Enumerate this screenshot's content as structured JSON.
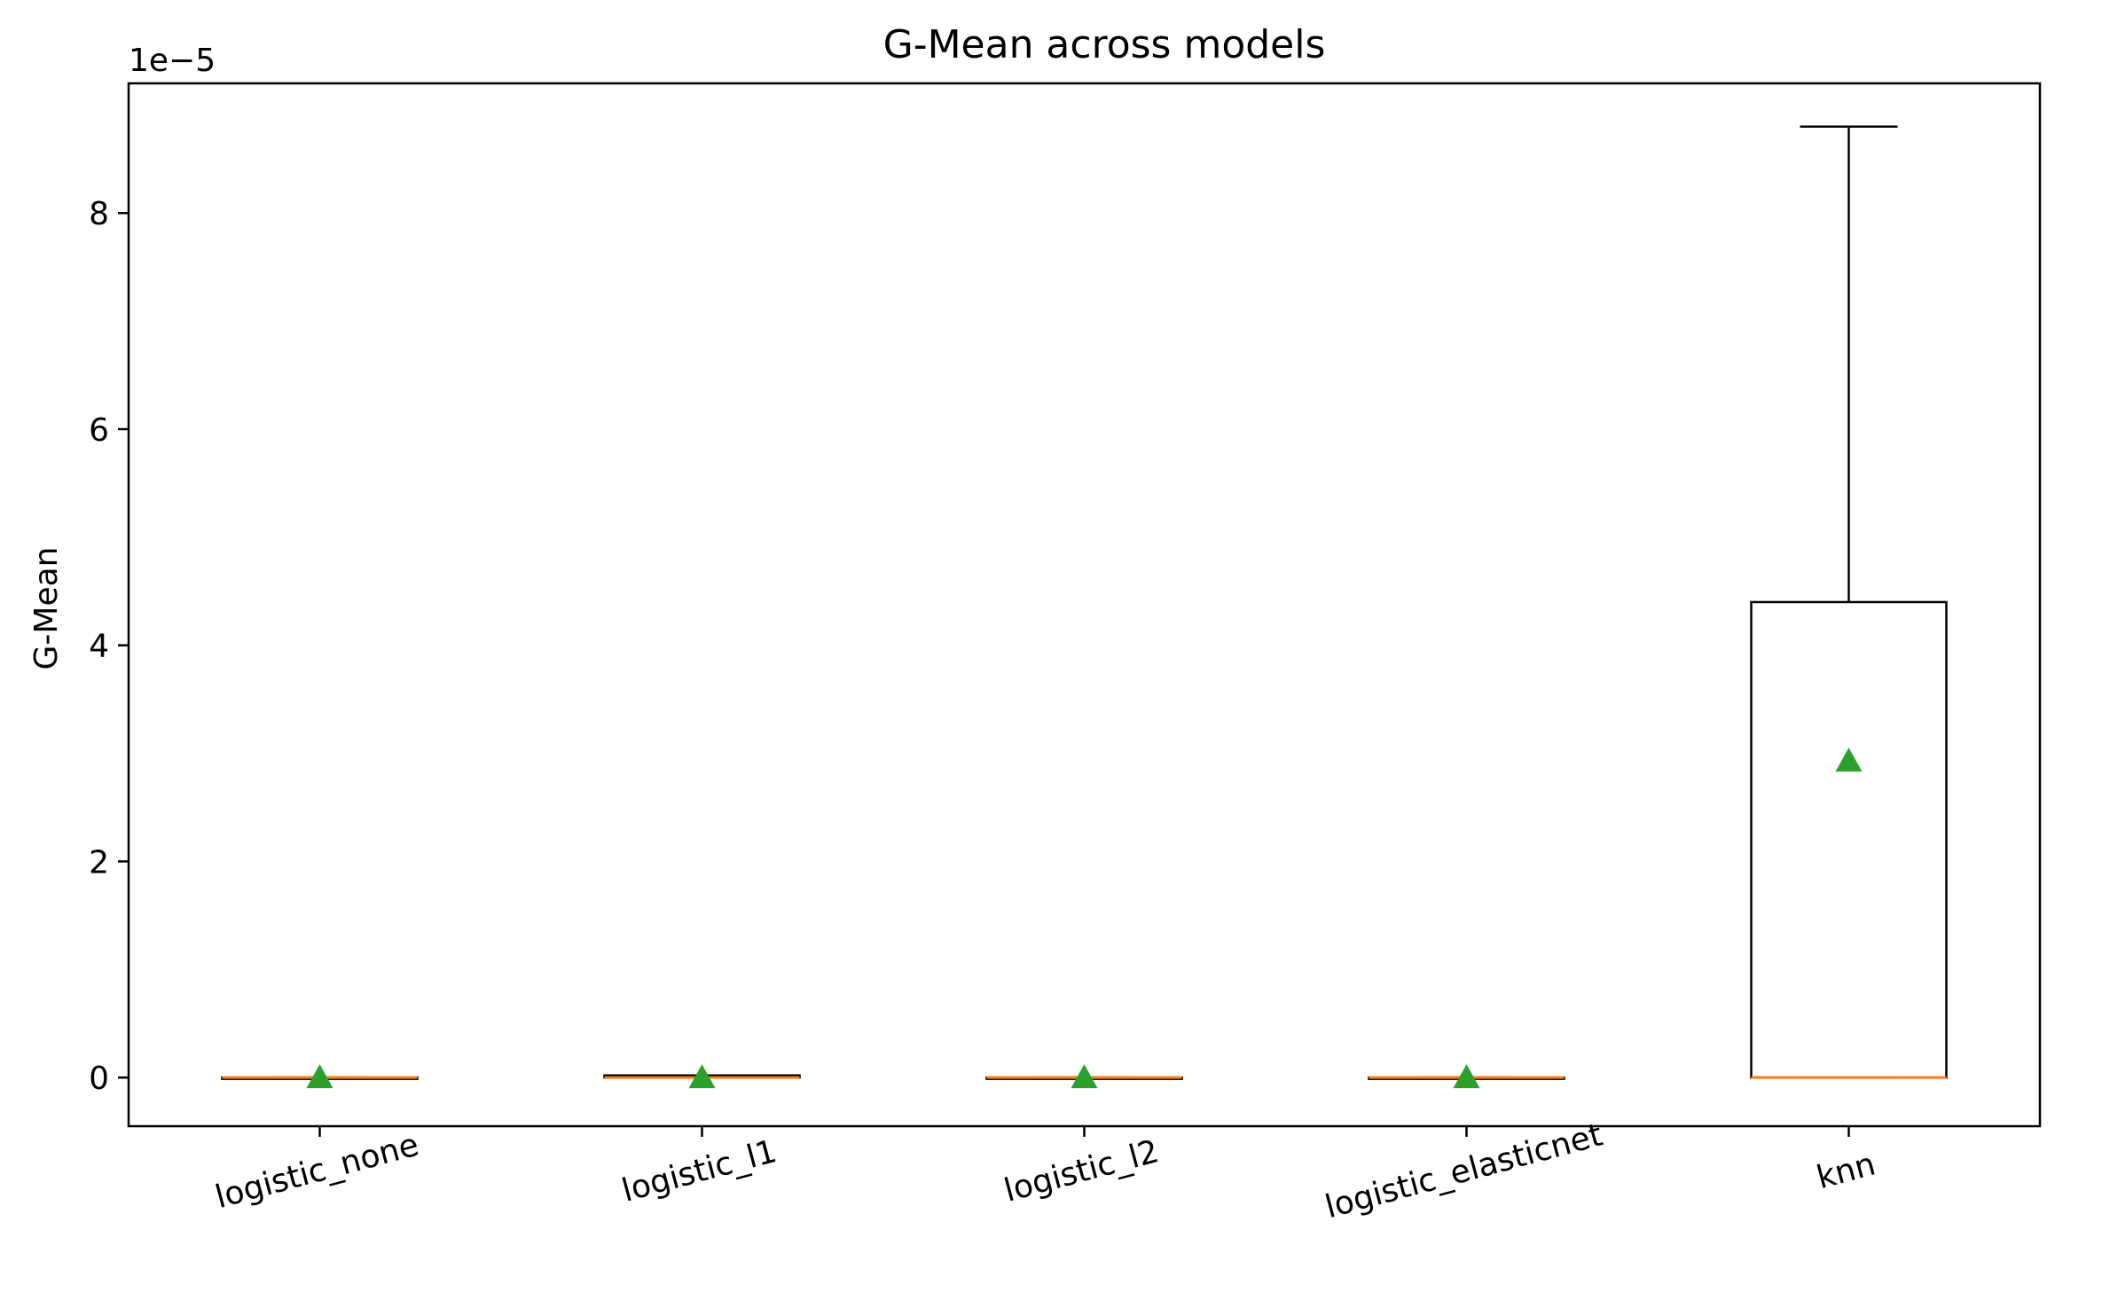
{
  "chart_data": {
    "type": "box",
    "title": "G-Mean across models",
    "xlabel": "",
    "ylabel": "G-Mean",
    "y_offset_label": "1e−5",
    "y_scale_exponent": -5,
    "ylim": [
      -0.45,
      9.2
    ],
    "yticks": [
      0,
      2,
      4,
      6,
      8
    ],
    "ytick_labels": [
      "0",
      "2",
      "4",
      "6",
      "8"
    ],
    "grid": false,
    "xtick_rotation_deg": 15,
    "categories": [
      "logistic_none",
      "logistic_l1",
      "logistic_l2",
      "logistic_elasticnet",
      "knn"
    ],
    "boxes": [
      {
        "name": "logistic_none",
        "whisker_low": 0,
        "q1": 0,
        "median": 0,
        "q3": 0,
        "whisker_high": 0,
        "mean": 0
      },
      {
        "name": "logistic_l1",
        "whisker_low": 0,
        "q1": 0,
        "median": 0,
        "q3": 0.02,
        "whisker_high": 0.02,
        "mean": 0
      },
      {
        "name": "logistic_l2",
        "whisker_low": 0,
        "q1": 0,
        "median": 0,
        "q3": 0,
        "whisker_high": 0,
        "mean": 0
      },
      {
        "name": "logistic_elasticnet",
        "whisker_low": 0,
        "q1": 0,
        "median": 0,
        "q3": 0,
        "whisker_high": 0,
        "mean": 0
      },
      {
        "name": "knn",
        "whisker_low": 0,
        "q1": 0,
        "median": 0,
        "q3": 4.4,
        "whisker_high": 8.8,
        "mean": 2.93
      }
    ],
    "colors": {
      "box": "#000000",
      "median": "#ff7f0e",
      "mean_marker": "#2ca02c"
    },
    "mean_marker_shape": "triangle"
  }
}
